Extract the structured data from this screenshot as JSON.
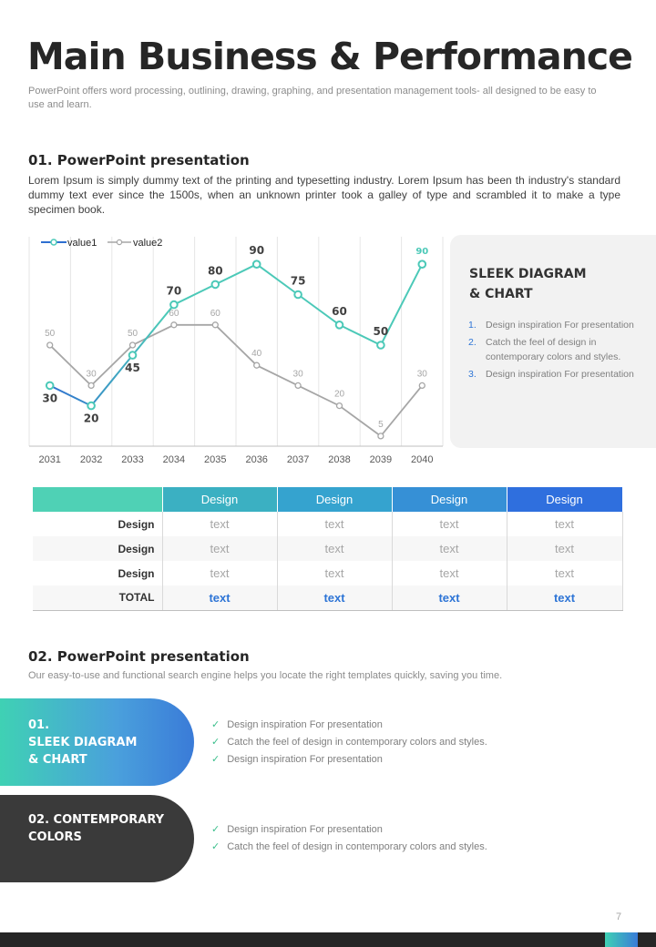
{
  "header": {
    "title": "Main Business & Performance",
    "subtitle": "PowerPoint offers word processing, outlining, drawing, graphing, and presentation management tools- all designed to be easy to use and learn."
  },
  "section1": {
    "heading": "01. PowerPoint presentation",
    "body": "Lorem Ipsum is simply dummy text of the printing and typesetting industry. Lorem Ipsum has been th industry's standard dummy text ever  since the 1500s, when an unknown printer took a galley of type and scrambled it to make a type specimen book."
  },
  "chart_data": {
    "type": "line",
    "categories": [
      "2031",
      "2032",
      "2033",
      "2034",
      "2035",
      "2036",
      "2037",
      "2038",
      "2039",
      "2040"
    ],
    "series": [
      {
        "name": "value1",
        "values": [
          30,
          20,
          45,
          70,
          80,
          90,
          75,
          60,
          50,
          90
        ],
        "color": "#4cc9b8",
        "color_start": "#2e6fd0"
      },
      {
        "name": "value2",
        "values": [
          50,
          30,
          50,
          60,
          60,
          40,
          30,
          20,
          5,
          30
        ],
        "color": "#a6a6a6"
      }
    ],
    "ylim": [
      0,
      100
    ],
    "grid": "vertical",
    "legend": "top-left"
  },
  "side_panel": {
    "title": "SLEEK DIAGRAM\n& CHART",
    "items": [
      {
        "num": "1.",
        "text": "Design inspiration For presentation"
      },
      {
        "num": "2.",
        "text": "Catch the feel of design in contemporary colors and styles."
      },
      {
        "num": "3.",
        "text": "Design inspiration For presentation"
      }
    ],
    "accent_color": "#2e75d6"
  },
  "table": {
    "headers": [
      "",
      "Design",
      "Design",
      "Design",
      "Design"
    ],
    "header_colors": [
      "#4fd1b5",
      "#3bb0c2",
      "#35a3cf",
      "#3690d6",
      "#2f6fde"
    ],
    "rows": [
      {
        "label": "Design",
        "cells": [
          "text",
          "text",
          "text",
          "text"
        ]
      },
      {
        "label": "Design",
        "cells": [
          "text",
          "text",
          "text",
          "text"
        ]
      },
      {
        "label": "Design",
        "cells": [
          "text",
          "text",
          "text",
          "text"
        ]
      }
    ],
    "total": {
      "label": "TOTAL",
      "cells": [
        "text",
        "text",
        "text",
        "text"
      ]
    }
  },
  "section2": {
    "heading": "02. PowerPoint presentation",
    "sub": "Our easy-to-use and functional search engine helps you locate the right templates quickly, saving you time.",
    "blocks": [
      {
        "label": "01.\nSLEEK DIAGRAM\n& CHART",
        "items": [
          "Design inspiration For presentation",
          "Catch the feel of design in contemporary colors and styles.",
          "Design inspiration For presentation"
        ]
      },
      {
        "label": "02. CONTEMPORARY\nCOLORS",
        "items": [
          "Design inspiration For presentation",
          "Catch the feel of design in contemporary colors and styles."
        ]
      }
    ],
    "check_icon": "✓"
  },
  "footer": {
    "page_number": "7"
  }
}
